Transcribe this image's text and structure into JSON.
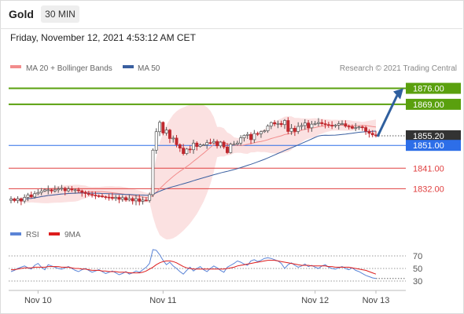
{
  "header": {
    "symbol": "Gold",
    "timeframe": "30 MIN",
    "datetime": "Friday, November 12, 2021 4:53:12 AM CET"
  },
  "legend": {
    "ma20": "MA 20 + Bollinger Bands",
    "ma50": "MA 50",
    "research": "Research © 2021 Trading Central",
    "rsi": "RSI",
    "ma9": "9MA"
  },
  "colors": {
    "resistance": "#5aa00e",
    "current": "#333333",
    "pivot": "#2d6ee8",
    "support": "#e04040",
    "candle_up": "#555555",
    "candle_down": "#c0272d",
    "bollinger": "#f7c9c9",
    "ma20": "#f28c8c",
    "ma50": "#3a5fa0",
    "rsi": "#5b84d6",
    "rsi_ma": "#dd1c1c",
    "arrow": "#2f5f9e"
  },
  "chart_data": [
    {
      "type": "candlestick",
      "title": "",
      "x_labels": [
        "Nov 10",
        "Nov 11",
        "Nov 12",
        "Nov 13"
      ],
      "ylim": [
        1817,
        1881
      ],
      "levels": [
        {
          "kind": "resistance",
          "value": 1876.0,
          "label": "1876.00"
        },
        {
          "kind": "resistance",
          "value": 1869.0,
          "label": "1869.00"
        },
        {
          "kind": "current",
          "value": 1855.2,
          "label": "1855.20"
        },
        {
          "kind": "pivot",
          "value": 1851.0,
          "label": "1851.00"
        },
        {
          "kind": "support",
          "value": 1841.0,
          "label": "1841.00"
        },
        {
          "kind": "support",
          "value": 1832.0,
          "label": "1832.00"
        }
      ],
      "close": [
        1827.5,
        1826.8,
        1827.6,
        1826.6,
        1828.2,
        1829.3,
        1828.4,
        1829.8,
        1830.3,
        1831.0,
        1831.5,
        1831.5,
        1831.0,
        1831.5,
        1831.9,
        1832.2,
        1831.1,
        1831.9,
        1831.5,
        1831.5,
        1831.1,
        1830.4,
        1829.9,
        1829.5,
        1829.2,
        1828.9,
        1828.8,
        1828.5,
        1828.3,
        1828.2,
        1827.8,
        1828.2,
        1827.4,
        1828.1,
        1827.1,
        1827.7,
        1826.7,
        1827.6,
        1826.5,
        1827.0,
        1826.9,
        1829.4,
        1848.9,
        1857.0,
        1861.1,
        1856.4,
        1857.7,
        1854.0,
        1854.2,
        1851.3,
        1849.8,
        1847.4,
        1849.4,
        1849.1,
        1852.0,
        1850.5,
        1851.2,
        1851.2,
        1852.2,
        1852.1,
        1852.7,
        1850.8,
        1852.4,
        1850.3,
        1847.8,
        1851.5,
        1851.5,
        1852.0,
        1854.3,
        1855.4,
        1855.8,
        1853.5,
        1856.2,
        1856.1,
        1857.0,
        1857.4,
        1859.5,
        1861.0,
        1860.4,
        1860.6,
        1860.1,
        1861.9,
        1857.1,
        1858.5,
        1857.1,
        1859.3,
        1859.7,
        1860.8,
        1858.7,
        1860.3,
        1860.6,
        1861.0,
        1860.5,
        1860.1,
        1859.8,
        1859.7,
        1859.9,
        1860.5,
        1860.5,
        1859.4,
        1859.2,
        1858.5,
        1858.8,
        1859.1,
        1858.8,
        1857.2,
        1856.3,
        1855.6,
        1855.2
      ],
      "rsi": {
        "levels": [
          70,
          50,
          30
        ],
        "rsi_values": [
          45,
          47,
          50,
          52,
          54,
          51,
          49,
          55,
          58,
          52,
          48,
          56,
          54,
          52,
          50,
          49,
          51,
          53,
          50,
          47,
          45,
          48,
          50,
          47,
          44,
          46,
          48,
          45,
          42,
          44,
          46,
          43,
          40,
          42,
          45,
          41,
          43,
          46,
          44,
          48,
          52,
          58,
          80,
          79,
          72,
          63,
          56,
          60,
          54,
          50,
          45,
          41,
          47,
          52,
          46,
          50,
          53,
          48,
          45,
          50,
          54,
          51,
          47,
          44,
          52,
          55,
          58,
          62,
          60,
          57,
          55,
          62,
          64,
          61,
          63,
          66,
          67,
          66,
          64,
          62,
          58,
          50,
          56,
          59,
          55,
          52,
          54,
          57,
          53,
          55,
          52,
          50,
          54,
          56,
          52,
          50,
          49,
          51,
          53,
          50,
          48,
          51,
          47,
          45,
          42,
          39,
          37,
          35,
          34
        ],
        "ma9_values": [
          48,
          48,
          49,
          50,
          51,
          51,
          51,
          52,
          52,
          52,
          52,
          53,
          53,
          53,
          53,
          52,
          52,
          52,
          51,
          50,
          50,
          49,
          49,
          48,
          47,
          47,
          47,
          46,
          46,
          45,
          45,
          45,
          44,
          44,
          44,
          43,
          43,
          43,
          43,
          44,
          46,
          49,
          52,
          56,
          59,
          61,
          62,
          62,
          61,
          59,
          56,
          53,
          51,
          50,
          49,
          49,
          49,
          49,
          49,
          49,
          49,
          49,
          49,
          49,
          50,
          51,
          52,
          54,
          55,
          56,
          57,
          58,
          59,
          60,
          61,
          62,
          63,
          63,
          63,
          62,
          61,
          60,
          59,
          58,
          57,
          56,
          55,
          55,
          55,
          54,
          54,
          54,
          54,
          54,
          53,
          53,
          52,
          52,
          52,
          52,
          52,
          51,
          50,
          49,
          48,
          47,
          45,
          43,
          41
        ]
      }
    }
  ]
}
